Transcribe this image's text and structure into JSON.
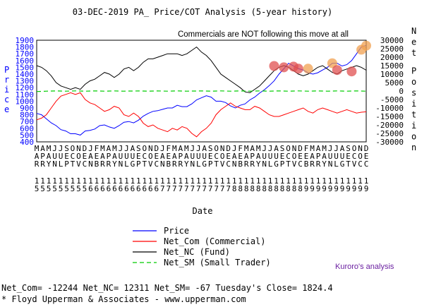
{
  "chart_data": {
    "type": "line",
    "title": "03-DEC-2019 PA_ Price/COT Analysis (5-year history)",
    "annotation": "Commercials are NOT following this move at all",
    "xlabel": "Date",
    "ylabel_left": "Price",
    "ylabel_right": "Net Position",
    "ylim_left": [
      400,
      1900
    ],
    "ylim_right": [
      -30000,
      30000
    ],
    "yticks_left": [
      "1900",
      "1800",
      "1700",
      "1600",
      "1500",
      "1400",
      "1300",
      "1200",
      "1100",
      "1000",
      "900",
      "800",
      "700",
      "600",
      "500",
      "400"
    ],
    "yticks_right": [
      "30000",
      "25000",
      "20000",
      "15000",
      "10000",
      "5000",
      "0",
      "-5000",
      "-10000",
      "-15000",
      "-20000",
      "-25000",
      "-30000"
    ],
    "month_letters": [
      "M",
      "A",
      "M",
      "J",
      "J",
      "S",
      "O",
      "N",
      "D",
      "J",
      "F",
      "M",
      "A",
      "M",
      "J",
      "J",
      "A",
      "S",
      "O",
      "N",
      "D",
      "J",
      "F",
      "M",
      "A",
      "M",
      "J",
      "J",
      "A",
      "S",
      "O",
      "N",
      "D",
      "J",
      "F",
      "M",
      "A",
      "M",
      "J",
      "J",
      "A",
      "S",
      "O",
      "N",
      "D",
      "F",
      "M",
      "A",
      "M",
      "J",
      "J",
      "A",
      "S",
      "O",
      "N",
      "D"
    ],
    "month_line2": [
      "A",
      "P",
      "A",
      "U",
      "U",
      "E",
      "C",
      "O",
      "E",
      "A",
      "E",
      "A",
      "P",
      "A",
      "U",
      "U",
      "U",
      "E",
      "C",
      "O",
      "E",
      "A",
      "E",
      "A",
      "P",
      "A",
      "U",
      "U",
      "U",
      "E",
      "C",
      "O",
      "E",
      "A",
      "E",
      "A",
      "P",
      "A",
      "U",
      "U",
      "U",
      "E",
      "C",
      "O",
      "E",
      "E",
      "A",
      "P",
      "A",
      "U",
      "U",
      "U",
      "E",
      "C",
      "O",
      "E"
    ],
    "month_line3": [
      "R",
      "R",
      "Y",
      "N",
      "L",
      "P",
      "T",
      "V",
      "C",
      "N",
      "B",
      "R",
      "R",
      "Y",
      "N",
      "L",
      "G",
      "P",
      "T",
      "V",
      "C",
      "N",
      "B",
      "R",
      "R",
      "Y",
      "N",
      "L",
      "G",
      "P",
      "T",
      "V",
      "C",
      "N",
      "B",
      "R",
      "R",
      "Y",
      "N",
      "L",
      "G",
      "P",
      "T",
      "V",
      "C",
      "B",
      "R",
      "R",
      "Y",
      "N",
      "L",
      "G",
      "T",
      "V",
      "C",
      "C"
    ],
    "year_line1": [
      "1",
      "1",
      "1",
      "1",
      "1",
      "1",
      "1",
      "1",
      "1",
      "1",
      "1",
      "1",
      "1",
      "1",
      "1",
      "1",
      "1",
      "1",
      "1",
      "1",
      "1",
      "1",
      "1",
      "1",
      "1",
      "1",
      "1",
      "1",
      "1",
      "1",
      "1",
      "1",
      "1",
      "1",
      "1",
      "1",
      "1",
      "1",
      "1",
      "1",
      "1",
      "1",
      "1",
      "1",
      "1",
      "1",
      "1",
      "1",
      "1",
      "1",
      "1",
      "1",
      "1",
      "1",
      "1",
      "1"
    ],
    "year_line2": [
      "5",
      "5",
      "5",
      "5",
      "5",
      "5",
      "5",
      "5",
      "5",
      "6",
      "6",
      "6",
      "6",
      "6",
      "6",
      "6",
      "6",
      "6",
      "6",
      "6",
      "6",
      "7",
      "7",
      "7",
      "7",
      "7",
      "7",
      "7",
      "7",
      "7",
      "7",
      "7",
      "7",
      "8",
      "8",
      "8",
      "8",
      "8",
      "8",
      "8",
      "8",
      "8",
      "8",
      "8",
      "8",
      "9",
      "9",
      "9",
      "9",
      "9",
      "9",
      "9",
      "9",
      "9",
      "9",
      "9"
    ],
    "series": [
      {
        "name": "Price",
        "axis": "left",
        "color": "#0000ff",
        "values": [
          820,
          800,
          740,
          680,
          640,
          580,
          560,
          520,
          520,
          500,
          560,
          570,
          590,
          640,
          650,
          620,
          600,
          640,
          690,
          700,
          680,
          720,
          780,
          820,
          850,
          860,
          880,
          900,
          900,
          940,
          920,
          920,
          960,
          1020,
          1050,
          1080,
          1060,
          1000,
          1000,
          980,
          930,
          900,
          940,
          960,
          1020,
          1060,
          1120,
          1170,
          1230,
          1300,
          1400,
          1480,
          1560,
          1520,
          1480,
          1460,
          1420,
          1400,
          1420,
          1460,
          1500,
          1560,
          1560,
          1520,
          1540,
          1600,
          1700,
          1800,
          1824
        ]
      },
      {
        "name": "Net_Com (Commercial)",
        "axis": "right",
        "color": "#ff0000",
        "values": [
          -17000,
          -16000,
          -14000,
          -10000,
          -6000,
          -3000,
          -2000,
          -1000,
          -2000,
          -1000,
          -5000,
          -7000,
          -8000,
          -10000,
          -12000,
          -11000,
          -9000,
          -10000,
          -14000,
          -15000,
          -13000,
          -15000,
          -19000,
          -21000,
          -20000,
          -22000,
          -23000,
          -24000,
          -22000,
          -23000,
          -21000,
          -22000,
          -25000,
          -27000,
          -24000,
          -22000,
          -19000,
          -14000,
          -11000,
          -9000,
          -7000,
          -9000,
          -10000,
          -11000,
          -11000,
          -9000,
          -10000,
          -12000,
          -14000,
          -15000,
          -15000,
          -14000,
          -13000,
          -12000,
          -11000,
          -10000,
          -12000,
          -13000,
          -11000,
          -10000,
          -11000,
          -12000,
          -13000,
          -12000,
          -11000,
          -12000,
          -13000,
          -12500,
          -12244
        ]
      },
      {
        "name": "Net_NC (Fund)",
        "axis": "right",
        "color": "#000000",
        "values": [
          15000,
          14000,
          12000,
          9000,
          5000,
          3000,
          2000,
          1000,
          2000,
          1000,
          4000,
          6000,
          7000,
          9000,
          11000,
          10000,
          8000,
          10000,
          13000,
          14000,
          12000,
          14000,
          17000,
          19000,
          19000,
          20000,
          21000,
          22000,
          22000,
          22000,
          21000,
          22000,
          24000,
          26000,
          23000,
          21000,
          18000,
          14000,
          10000,
          8000,
          6000,
          4000,
          2000,
          -500,
          -1000,
          1000,
          3000,
          6000,
          9000,
          12000,
          14000,
          15000,
          14000,
          12000,
          10000,
          9000,
          10000,
          12000,
          14000,
          15000,
          13000,
          11000,
          10000,
          12000,
          13000,
          14000,
          15000,
          14000,
          12311
        ]
      },
      {
        "name": "Net_SM (Small Trader)",
        "axis": "right",
        "color": "#00cc00",
        "values": [
          -300,
          -200,
          -100,
          0,
          100,
          0,
          -100,
          0,
          100,
          0,
          -100,
          0,
          100,
          0,
          -100,
          0,
          100,
          0,
          -100,
          0,
          0,
          100,
          0,
          -100,
          0,
          100,
          0,
          -100,
          0,
          100,
          0,
          -100,
          0,
          0,
          100,
          0,
          -100,
          0,
          100,
          0,
          -100,
          0,
          100,
          0,
          -100,
          0,
          100,
          0,
          -100,
          0,
          100,
          0,
          -100,
          0,
          100,
          0,
          -100,
          0,
          100,
          0,
          -100,
          0,
          100,
          0,
          -100,
          0,
          100,
          0,
          -67
        ]
      }
    ],
    "highlight_markers": [
      {
        "x_index": 49,
        "y": 1520,
        "color": "#e05050"
      },
      {
        "x_index": 51,
        "y": 1500,
        "color": "#e05050"
      },
      {
        "x_index": 53,
        "y": 1510,
        "color": "#e05050"
      },
      {
        "x_index": 54,
        "y": 1480,
        "color": "#e05050"
      },
      {
        "x_index": 56,
        "y": 1480,
        "color": "#f0a050"
      },
      {
        "x_index": 61,
        "y": 1560,
        "color": "#f0a050"
      },
      {
        "x_index": 62,
        "y": 1460,
        "color": "#e05050"
      },
      {
        "x_index": 65,
        "y": 1440,
        "color": "#e05050"
      },
      {
        "x_index": 67,
        "y": 1760,
        "color": "#f0a050"
      },
      {
        "x_index": 68,
        "y": 1820,
        "color": "#f0a050"
      }
    ],
    "grid": false
  },
  "legend": [
    {
      "label": "Price",
      "color": "#0000ff",
      "dash": ""
    },
    {
      "label": "Net_Com (Commercial)",
      "color": "#ff0000",
      "dash": ""
    },
    {
      "label": "Net_NC (Fund)",
      "color": "#000000",
      "dash": ""
    },
    {
      "label": "Net_SM (Small Trader)",
      "color": "#00cc00",
      "dash": "6,4"
    }
  ],
  "credit": "Kuroro's analysis",
  "footer": {
    "summary": "Net_Com= -12244 Net_NC= 12311 Net_SM= -67 Tuesday's Close= 1824.4",
    "copyright": "* Floyd Upperman & Associates - www.upperman.com"
  }
}
